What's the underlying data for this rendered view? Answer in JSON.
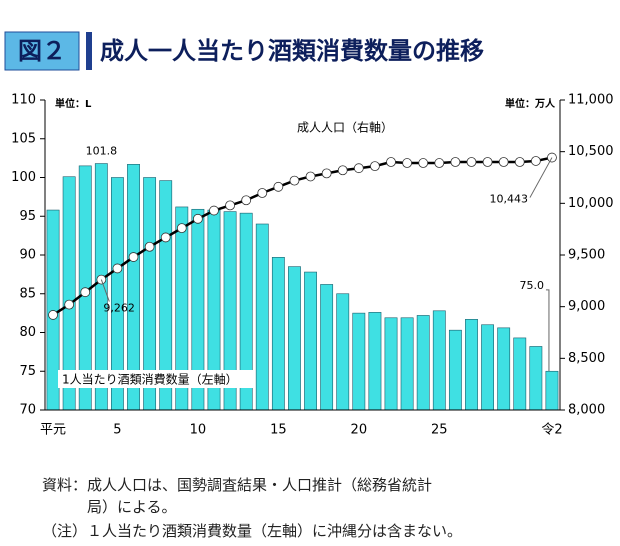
{
  "chart_data": {
    "type": "bar_line",
    "figure_label": "図２",
    "title": "成人一人当たり酒類消費数量の推移",
    "y_unit": "単位：L",
    "y2_unit": "単位：万人",
    "categories": [
      "平元",
      null,
      null,
      null,
      "5",
      null,
      null,
      null,
      null,
      "10",
      null,
      null,
      null,
      null,
      "15",
      null,
      null,
      null,
      null,
      "20",
      null,
      null,
      null,
      null,
      "25",
      null,
      null,
      null,
      null,
      null,
      null,
      "令2"
    ],
    "series": [
      {
        "name": "1人当たり酒類消費数量（左軸）",
        "color": "#3fe0e3",
        "type": "bar",
        "values": [
          95.8,
          100.1,
          101.5,
          101.8,
          100.0,
          101.7,
          100.0,
          99.6,
          96.2,
          95.9,
          95.8,
          95.6,
          95.4,
          94.0,
          89.7,
          88.5,
          87.8,
          86.2,
          85.0,
          82.5,
          82.6,
          81.9,
          81.9,
          82.2,
          82.8,
          80.3,
          81.7,
          81.0,
          80.6,
          79.3,
          78.2,
          75.0
        ],
        "value_labels": [
          null,
          null,
          null,
          "101.8",
          null,
          null,
          null,
          null,
          null,
          null,
          null,
          null,
          null,
          null,
          null,
          null,
          null,
          null,
          null,
          null,
          null,
          null,
          null,
          null,
          null,
          null,
          null,
          null,
          null,
          null,
          null,
          "75.0"
        ]
      },
      {
        "name": "成人人口（右軸）",
        "color": "#000000",
        "type": "line",
        "axis": "y2",
        "values": [
          8920,
          9020,
          9140,
          9262,
          9370,
          9480,
          9580,
          9670,
          9760,
          9850,
          9930,
          9980,
          10030,
          10100,
          10160,
          10220,
          10260,
          10290,
          10320,
          10340,
          10360,
          10400,
          10390,
          10390,
          10390,
          10400,
          10400,
          10400,
          10400,
          10400,
          10410,
          10443
        ],
        "value_labels": [
          null,
          null,
          null,
          "9,262",
          null,
          null,
          null,
          null,
          null,
          null,
          null,
          null,
          null,
          null,
          null,
          null,
          null,
          null,
          null,
          null,
          null,
          null,
          null,
          null,
          null,
          null,
          null,
          null,
          null,
          null,
          null,
          "10,443"
        ]
      }
    ],
    "ylim": [
      70,
      110
    ],
    "yticks": [
      70,
      75,
      80,
      85,
      90,
      95,
      100,
      105,
      110
    ],
    "y2lim": [
      8000,
      11000
    ],
    "y2ticks": [
      {
        "value": 8000,
        "label": "8,000"
      },
      {
        "value": 8500,
        "label": "8,500"
      },
      {
        "value": 9000,
        "label": "9,000"
      },
      {
        "value": 9500,
        "label": "9,500"
      },
      {
        "value": 10000,
        "label": "10,000"
      },
      {
        "value": 10500,
        "label": "10,500"
      },
      {
        "value": 11000,
        "label": "11,000"
      }
    ],
    "notes": [
      "資料：成人人口は、国勢調査結果・人口推計（総務省統計",
      "　　　局）による。",
      "（注）１人当たり酒類消費数量（左軸）に沖縄分は含まない。"
    ]
  }
}
